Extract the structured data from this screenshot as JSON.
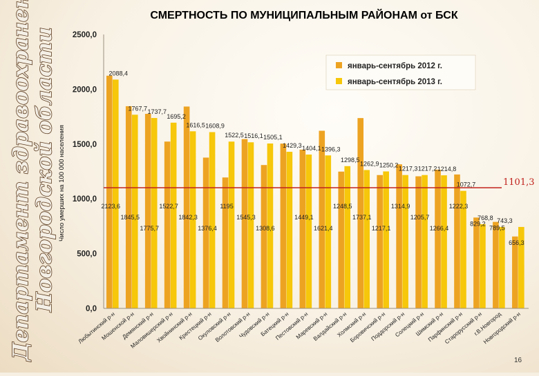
{
  "organization": {
    "line1": "Департамент здравоохранения",
    "line2": "Новгородской области"
  },
  "page_number": "16",
  "colors": {
    "series_2012": "#eda322",
    "series_2013": "#f6c70a",
    "reference_line": "#c0201b"
  },
  "chart_data": {
    "type": "bar",
    "title": "СМЕРТНОСТЬ ПО МУНИЦИПАЛЬНЫМ РАЙОНАМ от БСК",
    "ylabel": "Число умерших на 100 000 населения",
    "xlabel": "",
    "ylim": [
      0,
      2500
    ],
    "yticks": [
      0,
      500,
      1000,
      1500,
      2000,
      2500
    ],
    "ytick_labels": [
      "0,0",
      "500,0",
      "1000,0",
      "1500,0",
      "2000,0",
      "2500,0"
    ],
    "grid": false,
    "legend_position": "top-right",
    "categories": [
      "Любытинский р-н",
      "Мошенской р-н",
      "Демянский р-н",
      "Маловишерский р-н",
      "Хвойнинский р-н",
      "Крестецкий р-н",
      "Окуловский р-н",
      "Волотовский р-н",
      "Чудовский р-н",
      "Батецкий р-н",
      "Пестовский р-н",
      "Маревский р-н",
      "Валдайский р-н",
      "Холмский р-н",
      "Боровичский р-н",
      "Поддорский р-н",
      "Солецкий р-н",
      "Шимский р-н",
      "Парфинский р-н",
      "Старорусский р-н",
      "г.В.Новгород",
      "Новгородский р-н"
    ],
    "series": [
      {
        "name": "январь-сентябрь 2012 г.",
        "values": [
          2123.6,
          1845.5,
          1775.7,
          1522.7,
          1842.3,
          1376.4,
          1195,
          1545.3,
          1308.6,
          1504,
          1449.1,
          1621.4,
          1248.5,
          1737.1,
          1217.1,
          1314.9,
          1205.7,
          1266.4,
          1222.3,
          829.2,
          789.5,
          656.3
        ],
        "labels": [
          "2123,6",
          "1845,5",
          "1775,7",
          "1522,7",
          "1842,3",
          "1376,4",
          "1195",
          "1545,3",
          "1308,6",
          "",
          "1449,1",
          "1621,4",
          "1248,5",
          "1737,1",
          "1217,1",
          "1314,9",
          "1205,7",
          "1266,4",
          "1222,3",
          "829,2",
          "789,5",
          "656,3"
        ]
      },
      {
        "name": "январь-сентябрь 2013 г.",
        "values": [
          2088.4,
          1767.7,
          1737.7,
          1695.2,
          1616.5,
          1608.9,
          1522.5,
          1516.1,
          1505.1,
          1429.3,
          1404.1,
          1396.3,
          1298.5,
          1262.9,
          1250.2,
          1217.3,
          1217.2,
          1214.8,
          1072.7,
          768.8,
          743.3,
          743.3
        ],
        "labels": [
          "2088,4",
          "1767,7",
          "1737,7",
          "1695,2",
          "1616,5",
          "1608,9",
          "1522,5",
          "1516,1",
          "1505,1",
          "1429,3",
          "1404,1",
          "1396,3",
          "1298,5",
          "1262,9",
          "1250,2",
          "1217,3",
          "1217,2",
          "1214,8",
          "1072,7",
          "768,8",
          "743,3",
          ""
        ]
      }
    ],
    "reference_line": {
      "value": 1101.3,
      "label": "1101,3"
    }
  }
}
